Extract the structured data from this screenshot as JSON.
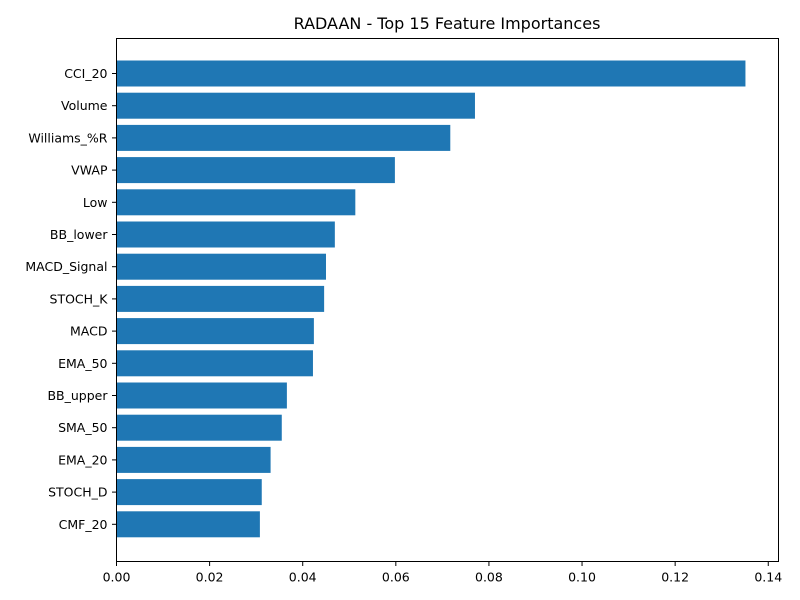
{
  "chart_data": {
    "type": "bar",
    "orientation": "horizontal",
    "title": "RADAAN - Top 15 Feature Importances",
    "xlabel": "",
    "ylabel": "",
    "categories": [
      "CCI_20",
      "Volume",
      "Williams_%R",
      "VWAP",
      "Low",
      "BB_lower",
      "MACD_Signal",
      "STOCH_K",
      "MACD",
      "EMA_50",
      "BB_upper",
      "SMA_50",
      "EMA_20",
      "STOCH_D",
      "CMF_20"
    ],
    "values": [
      0.1351,
      0.077,
      0.0717,
      0.0598,
      0.0513,
      0.0469,
      0.045,
      0.0446,
      0.0424,
      0.0422,
      0.0366,
      0.0355,
      0.0331,
      0.0312,
      0.0308
    ],
    "xlim": [
      0,
      0.1422
    ],
    "xticks": [
      "0.00",
      "0.02",
      "0.04",
      "0.06",
      "0.08",
      "0.10",
      "0.12",
      "0.14"
    ],
    "bar_color": "#1f77b4",
    "grid": false
  }
}
